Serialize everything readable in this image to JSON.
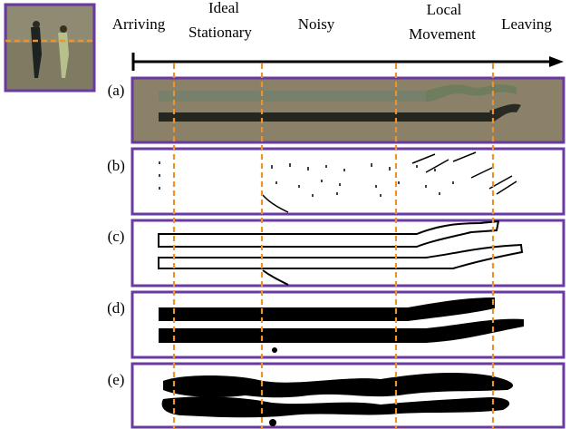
{
  "timeline": {
    "stages": [
      {
        "lines": [
          "Arriving"
        ]
      },
      {
        "lines": [
          "Ideal",
          "Stationary"
        ]
      },
      {
        "lines": [
          "Noisy"
        ]
      },
      {
        "lines": [
          "Local",
          "Movement"
        ]
      },
      {
        "lines": [
          "Leaving"
        ]
      }
    ]
  },
  "panels": [
    {
      "label": "(a)"
    },
    {
      "label": "(b)"
    },
    {
      "label": "(c)"
    },
    {
      "label": "(d)"
    },
    {
      "label": "(e)"
    }
  ]
}
